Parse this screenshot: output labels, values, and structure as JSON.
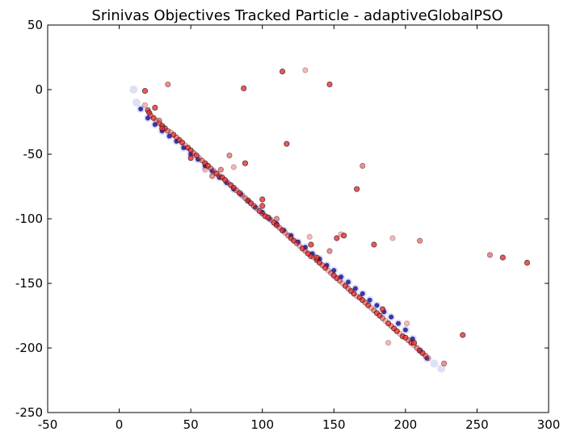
{
  "chart_data": {
    "type": "scatter",
    "title": "Srinivas Objectives Tracked Particle - adaptiveGlobalPSO",
    "xlabel": "",
    "ylabel": "",
    "xlim": [
      -50,
      300
    ],
    "ylim": [
      -250,
      50
    ],
    "xticks": [
      -50,
      0,
      50,
      100,
      150,
      200,
      250,
      300
    ],
    "yticks": [
      -250,
      -200,
      -150,
      -100,
      -50,
      0,
      50
    ],
    "grid": false,
    "legend": "none",
    "colors": {
      "front": "#1a1aa0",
      "front_halo": "#c9c9ee",
      "tracked": "#e83030",
      "tracked_edge": "#000000"
    },
    "series": [
      {
        "role": "pareto-front",
        "x": [
          10,
          12,
          15,
          20,
          25,
          30,
          35,
          40,
          45,
          50,
          55,
          60,
          65,
          70,
          75,
          80,
          85,
          90,
          95,
          100,
          105,
          110,
          115,
          120,
          125,
          130,
          135,
          140,
          145,
          150,
          155,
          160,
          165,
          170,
          175,
          180,
          185,
          190,
          195,
          200,
          205,
          210,
          215,
          220,
          225
        ],
        "y": [
          0,
          -10,
          -15,
          -22,
          -27,
          -32,
          -36,
          -40,
          -45,
          -50,
          -54,
          -59,
          -63,
          -68,
          -72,
          -77,
          -81,
          -86,
          -91,
          -95,
          -100,
          -104,
          -109,
          -113,
          -118,
          -122,
          -127,
          -131,
          -136,
          -140,
          -145,
          -149,
          -154,
          -158,
          -163,
          -167,
          -172,
          -176,
          -181,
          -186,
          -193,
          -202,
          -208,
          -212,
          -216
        ]
      },
      {
        "role": "tracked-particle",
        "x": [
          18,
          20,
          21,
          22,
          24,
          26,
          28,
          30,
          32,
          34,
          36,
          38,
          40,
          42,
          44,
          46,
          48,
          50,
          52,
          54,
          56,
          58,
          60,
          62,
          64,
          66,
          68,
          70,
          72,
          74,
          76,
          78,
          80,
          82,
          84,
          86,
          88,
          90,
          92,
          94,
          96,
          98,
          100,
          102,
          104,
          106,
          108,
          110,
          112,
          114,
          116,
          118,
          120,
          122,
          124,
          126,
          128,
          130,
          132,
          134,
          136,
          138,
          140,
          142,
          144,
          146,
          148,
          150,
          152,
          154,
          156,
          158,
          160,
          162,
          164,
          166,
          168,
          170,
          172,
          174,
          176,
          178,
          180,
          182,
          184,
          186,
          188,
          190,
          192,
          194,
          196,
          198,
          200,
          202,
          204,
          206,
          208,
          210,
          212,
          214,
          216,
          18,
          34,
          87,
          114,
          130,
          147,
          117,
          77,
          88,
          80,
          71,
          100,
          100,
          110,
          133,
          134,
          147,
          138,
          152,
          155,
          157,
          166,
          170,
          178,
          191,
          210,
          184,
          240,
          227,
          201,
          206,
          259,
          268,
          285,
          188,
          50,
          30,
          28,
          25,
          60,
          65
        ],
        "y": [
          -12,
          -16,
          -18,
          -20,
          -22,
          -24,
          -26,
          -28,
          -30,
          -32,
          -33,
          -35,
          -37,
          -39,
          -41,
          -43,
          -45,
          -47,
          -49,
          -51,
          -53,
          -55,
          -57,
          -59,
          -61,
          -63,
          -65,
          -67,
          -68,
          -70,
          -72,
          -74,
          -76,
          -78,
          -80,
          -82,
          -84,
          -86,
          -88,
          -90,
          -92,
          -94,
          -96,
          -98,
          -99,
          -101,
          -103,
          -105,
          -107,
          -109,
          -111,
          -113,
          -115,
          -117,
          -119,
          -121,
          -123,
          -125,
          -127,
          -129,
          -130,
          -132,
          -134,
          -136,
          -138,
          -140,
          -142,
          -144,
          -146,
          -148,
          -150,
          -152,
          -154,
          -156,
          -158,
          -160,
          -161,
          -163,
          -165,
          -167,
          -169,
          -171,
          -173,
          -175,
          -177,
          -179,
          -181,
          -183,
          -185,
          -187,
          -189,
          -191,
          -192,
          -194,
          -196,
          -198,
          -200,
          -202,
          -204,
          -206,
          -208,
          -1,
          4,
          1,
          14,
          15,
          4,
          -42,
          -51,
          -57,
          -60,
          -62,
          -85,
          -90,
          -100,
          -114,
          -120,
          -125,
          -130,
          -115,
          -112,
          -113,
          -77,
          -59,
          -120,
          -115,
          -117,
          -170,
          -190,
          -212,
          -181,
          -196,
          -128,
          -130,
          -134,
          -196,
          -53,
          -30,
          -24,
          -14,
          -62,
          -67
        ]
      }
    ]
  }
}
